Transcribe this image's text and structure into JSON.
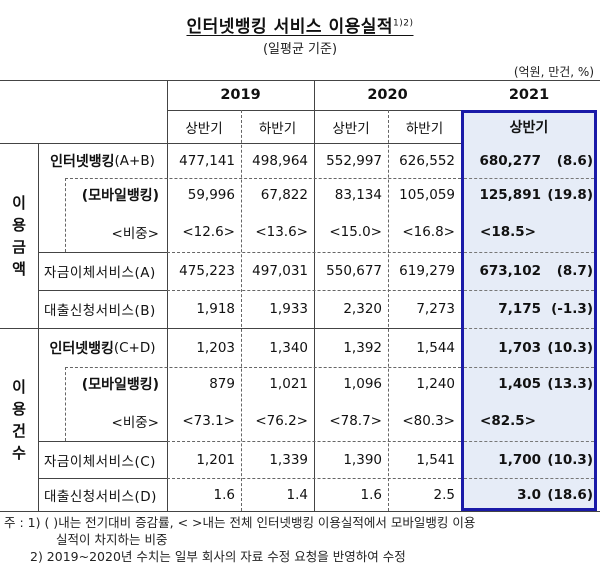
{
  "title": "인터넷뱅킹 서비스 이용실적",
  "title_sup": "1)2)",
  "subtitle": "(일평균 기준)",
  "unit": "(억원, 만건, %)",
  "colors": {
    "highlight_fill": "#e6ecf7",
    "highlight_border": "#1a1aa8"
  },
  "header": {
    "years": [
      "2019",
      "2020",
      "2021"
    ],
    "halves": [
      "상반기",
      "하반기",
      "상반기",
      "하반기",
      "상반기"
    ]
  },
  "groups": [
    {
      "label": [
        "이",
        "용",
        "금",
        "액"
      ]
    },
    {
      "label": [
        "이",
        "용",
        "건",
        "수"
      ]
    }
  ],
  "rows": [
    {
      "label_bold": "인터넷뱅킹",
      "label_rest": "(A+B)",
      "values": [
        "477,141",
        "498,964",
        "552,997",
        "626,552",
        "680,277"
      ],
      "change": "(8.6)"
    },
    {
      "label_bold": "(모바일뱅킹)",
      "label_rest": "",
      "values": [
        "59,996",
        "67,822",
        "83,134",
        "105,059",
        "125,891"
      ],
      "change": "(19.8)"
    },
    {
      "label_bold": "",
      "label_rest": "<비중>",
      "values": [
        "<12.6>",
        "<13.6>",
        "<15.0>",
        "<16.8>",
        "<18.5>"
      ],
      "change": ""
    },
    {
      "label_bold": "",
      "label_rest": "자금이체서비스(A)",
      "values": [
        "475,223",
        "497,031",
        "550,677",
        "619,279",
        "673,102"
      ],
      "change": "(8.7)"
    },
    {
      "label_bold": "",
      "label_rest": "대출신청서비스(B)",
      "values": [
        "1,918",
        "1,933",
        "2,320",
        "7,273",
        "7,175"
      ],
      "change": "(-1.3)"
    },
    {
      "label_bold": "인터넷뱅킹",
      "label_rest": "(C+D)",
      "values": [
        "1,203",
        "1,340",
        "1,392",
        "1,544",
        "1,703"
      ],
      "change": "(10.3)"
    },
    {
      "label_bold": "(모바일뱅킹)",
      "label_rest": "",
      "values": [
        "879",
        "1,021",
        "1,096",
        "1,240",
        "1,405"
      ],
      "change": "(13.3)"
    },
    {
      "label_bold": "",
      "label_rest": "<비중>",
      "values": [
        "<73.1>",
        "<76.2>",
        "<78.7>",
        "<80.3>",
        "<82.5>"
      ],
      "change": ""
    },
    {
      "label_bold": "",
      "label_rest": "자금이체서비스(C)",
      "values": [
        "1,201",
        "1,339",
        "1,390",
        "1,541",
        "1,700"
      ],
      "change": "(10.3)"
    },
    {
      "label_bold": "",
      "label_rest": "대출신청서비스(D)",
      "values": [
        "1.6",
        "1.4",
        "1.6",
        "2.5",
        "3.0"
      ],
      "change": "(18.6)"
    }
  ],
  "notes": [
    "주 : 1) (   )내는 전기대비 증감률, < >내는 전체 인터넷뱅킹 이용실적에서 모바일뱅킹 이용",
    "실적이 차지하는 비중",
    "2) 2019~2020년 수치는 일부 회사의 자료 수정 요청을 반영하여 수정"
  ]
}
